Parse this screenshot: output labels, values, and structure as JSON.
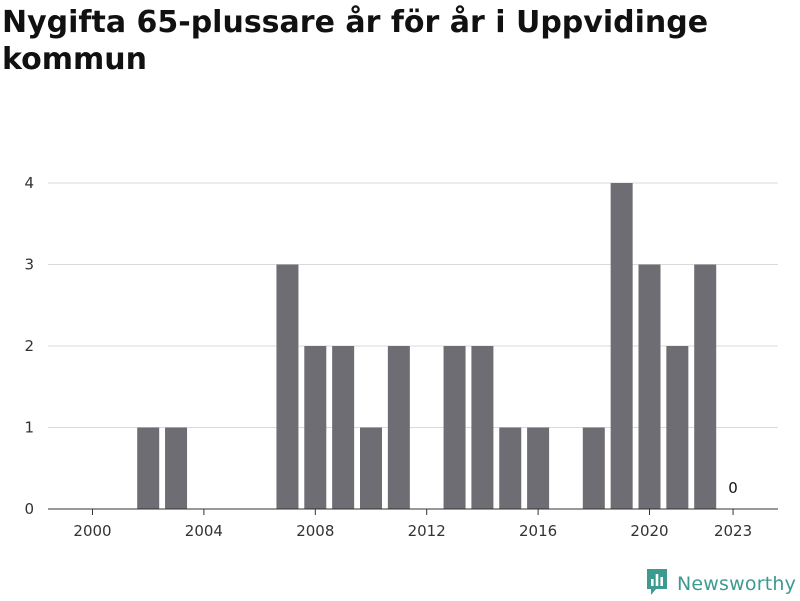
{
  "title": "Nygifta 65-plussare år för år i Uppvidinge kommun",
  "brand": {
    "name": "Newsworthy",
    "logo_icon": "newsworthy-logo-icon",
    "color": "#3c9a91"
  },
  "chart_data": {
    "type": "bar",
    "title": "Nygifta 65-plussare år för år i Uppvidinge kommun",
    "xlabel": "",
    "ylabel": "",
    "categories": [
      "2000",
      "2001",
      "2002",
      "2003",
      "2004",
      "2005",
      "2006",
      "2007",
      "2008",
      "2009",
      "2010",
      "2011",
      "2012",
      "2013",
      "2014",
      "2015",
      "2016",
      "2017",
      "2018",
      "2019",
      "2020",
      "2021",
      "2022",
      "2023"
    ],
    "values": [
      0,
      0,
      1,
      1,
      0,
      0,
      0,
      3,
      2,
      2,
      1,
      2,
      0,
      2,
      2,
      1,
      1,
      0,
      1,
      4,
      3,
      2,
      3,
      0
    ],
    "ylim": [
      0,
      4
    ],
    "yticks": [
      0,
      1,
      2,
      3,
      4
    ],
    "xticks": [
      "2000",
      "2004",
      "2008",
      "2012",
      "2016",
      "2020",
      "2023"
    ],
    "data_labels": [
      {
        "category": "2023",
        "value": 0,
        "text": "0"
      }
    ],
    "grid": true,
    "bar_color": "#6e6d73"
  }
}
